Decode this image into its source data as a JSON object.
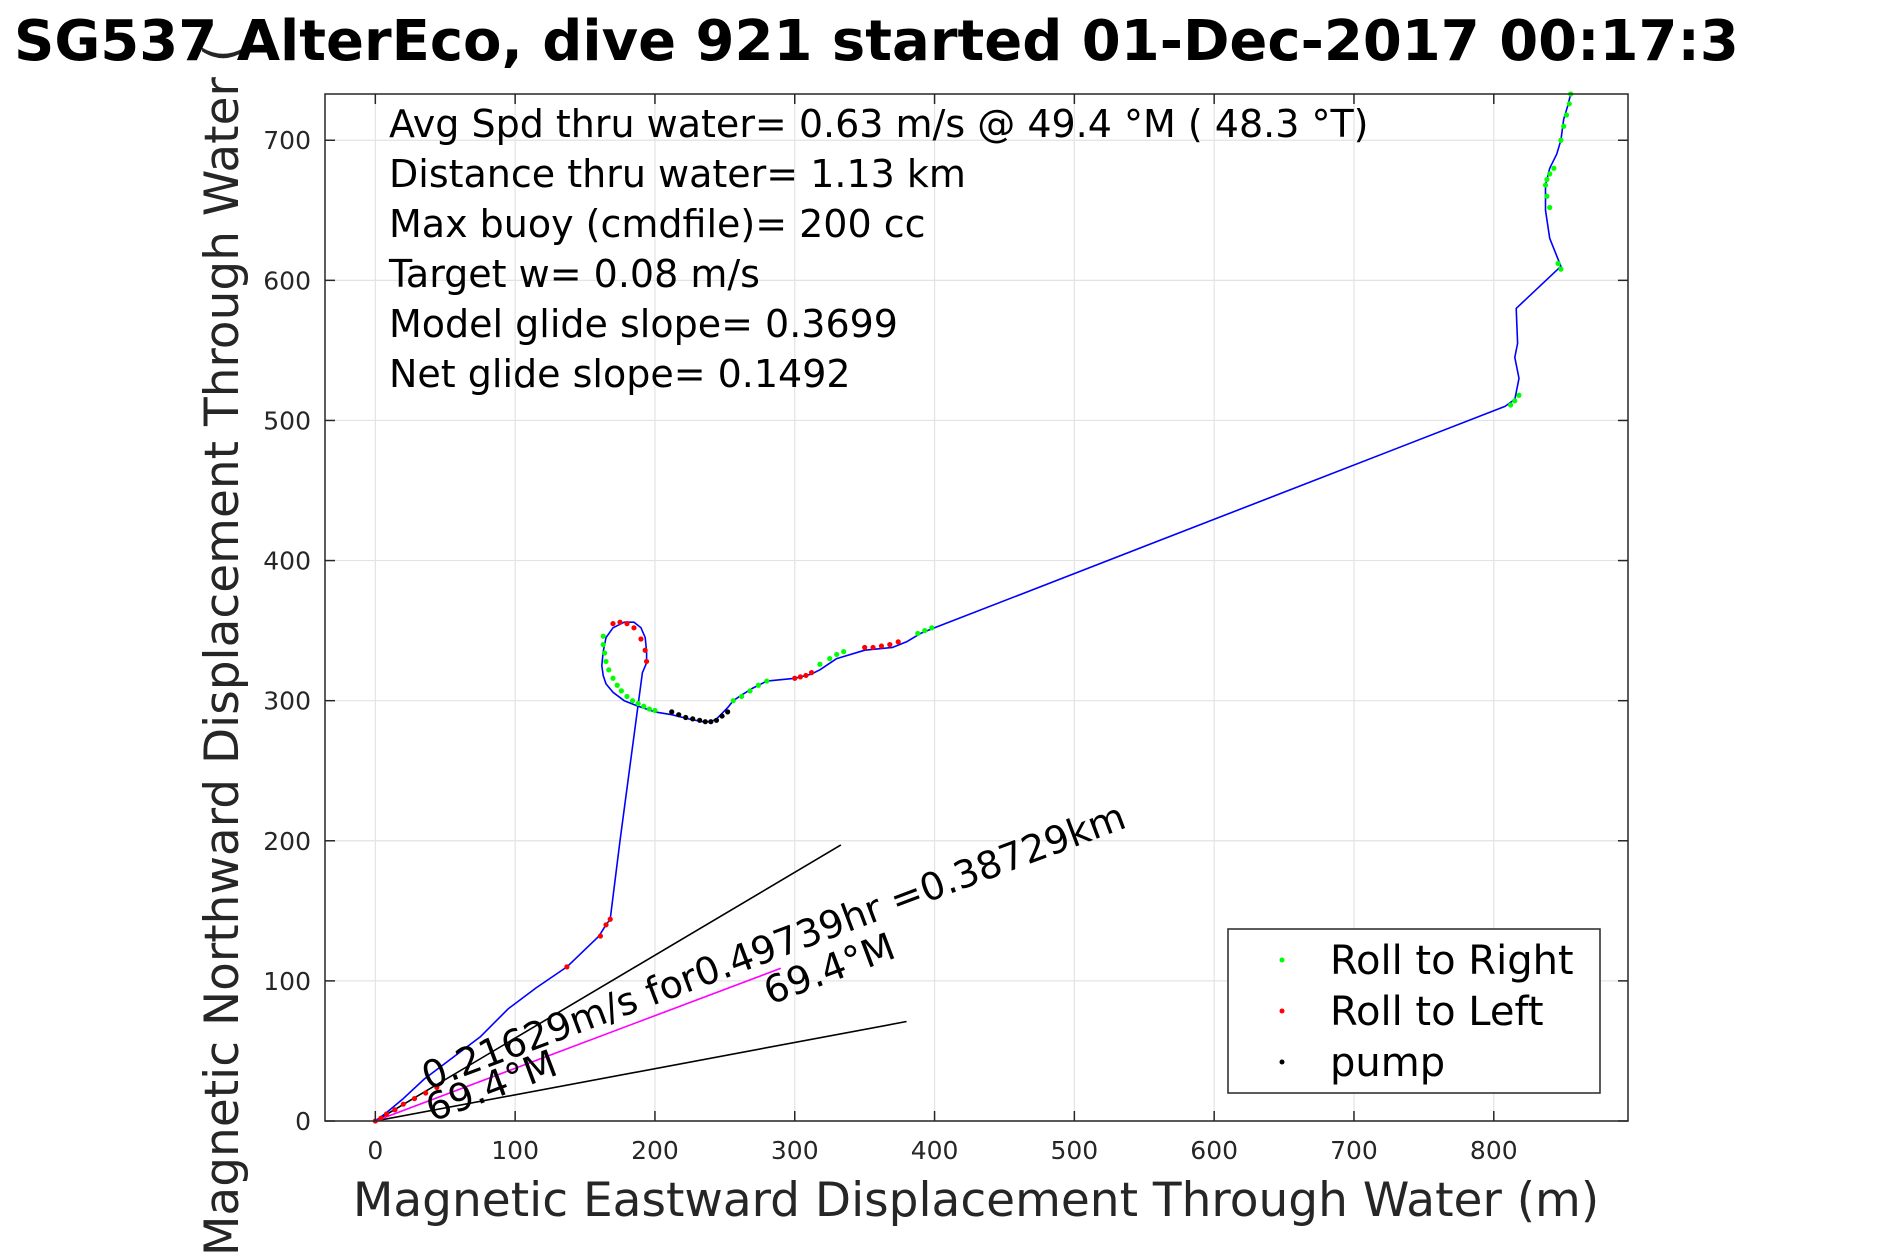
{
  "chart_data": {
    "type": "line",
    "title": "SG537 AlterEco, dive 921 started 01-Dec-2017 00:17:3",
    "xlabel": "Magnetic Eastward Displacement Through Water (m)",
    "ylabel": "Magnetic Northward Displacement Through Water (",
    "xlim": [
      -36,
      896
    ],
    "ylim": [
      0,
      733
    ],
    "xticks": [
      0,
      100,
      200,
      300,
      400,
      500,
      600,
      700,
      800
    ],
    "yticks": [
      0,
      100,
      200,
      300,
      400,
      500,
      600,
      700
    ],
    "grid": true,
    "legend_position": "bottom-right",
    "info_lines": [
      "Avg Spd thru water=  0.63 m/s @  49.4 °M ( 48.3 °T)",
      "Distance thru water=  1.13 km",
      "Max buoy (cmdfile)= 200 cc",
      "Target w= 0.08 m/s",
      "Model glide slope= 0.3699",
      "Net glide slope= 0.1492"
    ],
    "annotations": {
      "current_label": "0.21629m/s for0.49739hr =0.38729km",
      "angle_label_1": "69.4°M",
      "angle_label_2": "69.4°M"
    },
    "track": {
      "name": "track",
      "color": "#0000ff",
      "x": [
        0,
        8,
        20,
        35,
        55,
        75,
        95,
        115,
        137,
        160,
        165,
        168,
        175,
        183,
        191,
        194,
        194,
        193,
        190,
        185,
        178,
        170,
        165,
        163,
        162,
        163,
        165,
        170,
        178,
        188,
        200,
        212,
        224,
        234,
        240,
        244,
        248,
        252,
        256,
        262,
        270,
        280,
        300,
        312,
        318,
        330,
        350,
        370,
        380,
        390,
        400,
        808,
        815,
        818,
        815,
        817,
        816,
        848,
        840,
        837,
        837,
        840,
        845,
        848,
        850,
        853,
        855
      ],
      "y": [
        0,
        6,
        16,
        30,
        45,
        60,
        80,
        95,
        110,
        132,
        140,
        144,
        200,
        260,
        320,
        327,
        335,
        345,
        352,
        356,
        356,
        352,
        345,
        335,
        325,
        318,
        312,
        306,
        300,
        296,
        292,
        290,
        287,
        285,
        285,
        287,
        291,
        295,
        300,
        304,
        309,
        314,
        316,
        319,
        322,
        330,
        336,
        338,
        342,
        348,
        352,
        510,
        515,
        530,
        545,
        555,
        580,
        610,
        630,
        650,
        668,
        680,
        690,
        700,
        715,
        725,
        733
      ]
    },
    "series": [
      {
        "name": "Roll to Right",
        "color": "#00ff00",
        "x": [
          163,
          163,
          164,
          165,
          167,
          170,
          173,
          176,
          180,
          184,
          188,
          192,
          196,
          200,
          256,
          262,
          268,
          274,
          280,
          318,
          325,
          330,
          335,
          388,
          393,
          398,
          812,
          815,
          818,
          846,
          848,
          840,
          838,
          837,
          838,
          840,
          843,
          848,
          850,
          852,
          854,
          855
        ],
        "y": [
          346,
          340,
          334,
          328,
          322,
          316,
          311,
          307,
          303,
          300,
          298,
          296,
          294,
          293,
          300,
          303,
          307,
          311,
          314,
          326,
          330,
          333,
          335,
          348,
          350,
          352,
          511,
          514,
          518,
          612,
          608,
          652,
          660,
          668,
          672,
          676,
          680,
          700,
          710,
          718,
          726,
          733
        ]
      },
      {
        "name": "Roll to Left",
        "color": "#ff0000",
        "x": [
          0,
          4,
          8,
          14,
          20,
          28,
          36,
          44,
          137,
          161,
          165,
          168,
          170,
          175,
          180,
          185,
          190,
          193,
          194,
          300,
          304,
          308,
          312,
          350,
          356,
          362,
          368,
          374
        ],
        "y": [
          0,
          2,
          5,
          8,
          12,
          16,
          20,
          24,
          110,
          132,
          140,
          144,
          355,
          356,
          355,
          352,
          344,
          336,
          328,
          316,
          317,
          318,
          320,
          338,
          338,
          339,
          340,
          342
        ]
      },
      {
        "name": "pump",
        "color": "#000000",
        "x": [
          212,
          217,
          222,
          227,
          232,
          236,
          240,
          244,
          248,
          252
        ],
        "y": [
          292,
          290,
          288,
          287,
          286,
          285,
          285,
          286,
          289,
          292
        ]
      }
    ],
    "current_vector": {
      "color": "#ff00ff",
      "x": [
        0,
        290
      ],
      "y": [
        0,
        109
      ]
    },
    "reference_lines": [
      {
        "color": "#000000",
        "x": [
          0,
          333
        ],
        "y": [
          0,
          197
        ]
      },
      {
        "color": "#000000",
        "x": [
          0,
          380
        ],
        "y": [
          0,
          71
        ]
      }
    ]
  }
}
